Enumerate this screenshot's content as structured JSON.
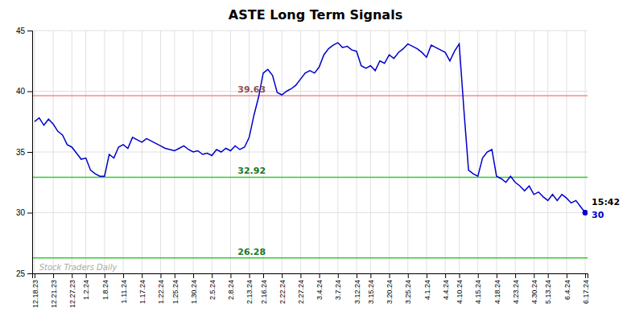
{
  "chart_data": {
    "type": "line",
    "title": "ASTE Long Term Signals",
    "categories": [
      "12.18.23",
      null,
      null,
      null,
      "12.21.23",
      null,
      null,
      null,
      "12.27.23",
      null,
      null,
      "1.2.24",
      null,
      null,
      null,
      "1.8.24",
      null,
      null,
      null,
      "1.11.24",
      null,
      null,
      null,
      "1.17.24",
      null,
      null,
      null,
      "1.22.24",
      null,
      null,
      "1.25.24",
      null,
      null,
      null,
      "1.30.24",
      null,
      null,
      null,
      "2.5.24",
      null,
      null,
      null,
      "2.8.24",
      null,
      null,
      null,
      "2.13.24",
      null,
      null,
      "2.16.24",
      null,
      null,
      null,
      "2.22.24",
      null,
      null,
      null,
      "2.27.24",
      null,
      null,
      null,
      "3.4.24",
      null,
      null,
      null,
      "3.7.24",
      null,
      null,
      null,
      "3.12.24",
      null,
      null,
      "3.15.24",
      null,
      null,
      null,
      "3.20.24",
      null,
      null,
      null,
      "3.25.24",
      null,
      null,
      null,
      "4.1.24",
      null,
      null,
      null,
      "4.4.24",
      null,
      null,
      "4.10.24",
      null,
      null,
      null,
      "4.15.24",
      null,
      null,
      null,
      "4.18.24",
      null,
      null,
      null,
      "4.23.24",
      null,
      null,
      null,
      "4.30.24",
      null,
      null,
      "5.13.24",
      null,
      null,
      null,
      "6.4.24",
      null,
      null,
      null,
      "6.17.24"
    ],
    "values": [
      37.5,
      37.8,
      37.2,
      37.7,
      37.3,
      36.7,
      36.4,
      35.6,
      35.4,
      34.9,
      34.4,
      34.5,
      33.5,
      33.2,
      33.0,
      33.0,
      34.8,
      34.5,
      35.4,
      35.6,
      35.3,
      36.2,
      36.0,
      35.8,
      36.1,
      35.9,
      35.7,
      35.5,
      35.3,
      35.2,
      35.1,
      35.3,
      35.5,
      35.2,
      35.0,
      35.1,
      34.8,
      34.9,
      34.7,
      35.2,
      35.0,
      35.3,
      35.1,
      35.5,
      35.2,
      35.4,
      36.2,
      38.0,
      39.5,
      41.5,
      41.8,
      41.3,
      39.9,
      39.7,
      40.0,
      40.2,
      40.5,
      41.0,
      41.5,
      41.7,
      41.5,
      42.0,
      43.0,
      43.5,
      43.8,
      44.0,
      43.6,
      43.7,
      43.4,
      43.3,
      42.1,
      41.9,
      42.1,
      41.7,
      42.5,
      42.3,
      43.0,
      42.7,
      43.2,
      43.5,
      43.9,
      43.7,
      43.5,
      43.2,
      42.8,
      43.8,
      43.6,
      43.4,
      43.2,
      42.5,
      43.3,
      43.9,
      38.5,
      33.5,
      33.2,
      33.0,
      34.5,
      35.0,
      35.2,
      33.0,
      32.8,
      32.5,
      33.0,
      32.5,
      32.2,
      31.8,
      32.2,
      31.5,
      31.7,
      31.3,
      31.0,
      31.5,
      31.0,
      31.5,
      31.2,
      30.8,
      31.0,
      30.5,
      30.0
    ],
    "color": "#0000cc",
    "ylim": [
      25,
      45
    ],
    "yticks": [
      25,
      30,
      35,
      40,
      45
    ],
    "grid": true,
    "reference_lines": [
      {
        "value": 39.63,
        "label": "39.63",
        "color": "#ff8888"
      },
      {
        "value": 32.92,
        "label": "32.92",
        "color": "#33cc33"
      },
      {
        "value": 26.28,
        "label": "26.28",
        "color": "#33cc33"
      }
    ],
    "annotations": [
      "15:42",
      "30"
    ],
    "watermark": {
      "text": "Stock Traders Daily",
      "color": "#aaaaaa"
    }
  }
}
